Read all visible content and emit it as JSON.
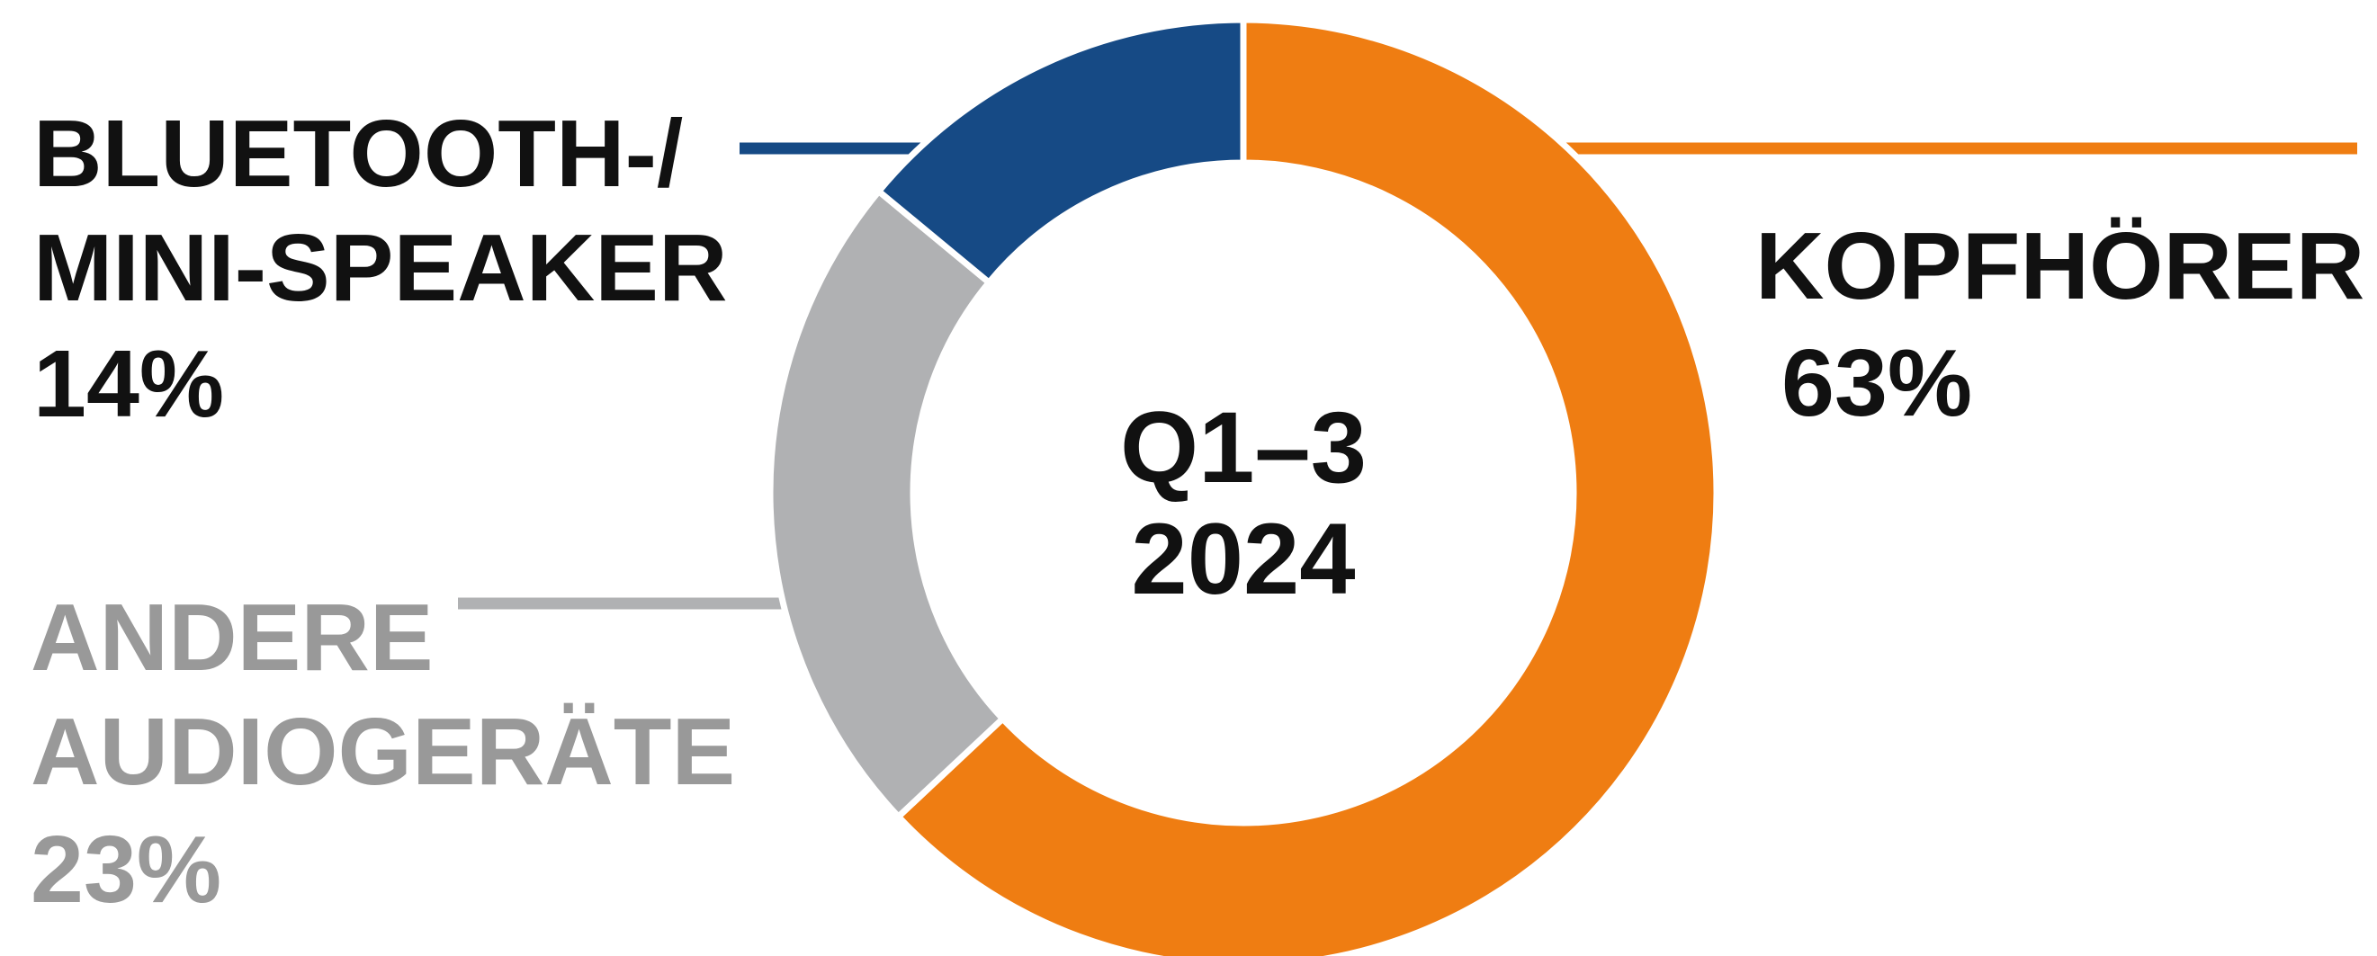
{
  "chart_data": {
    "type": "donut",
    "center_label": [
      "Q1–3",
      "2024"
    ],
    "categories": [
      "KOPFHÖRER",
      "ANDERE\nAUDIOGERÄTE",
      "BLUETOOTH-/\nMINI-SPEAKER"
    ],
    "values": [
      63,
      23,
      14
    ],
    "value_labels": [
      "63%",
      "23%",
      "14%"
    ],
    "colors": [
      "#ef7d12",
      "#b0b1b3",
      "#164a85"
    ]
  }
}
